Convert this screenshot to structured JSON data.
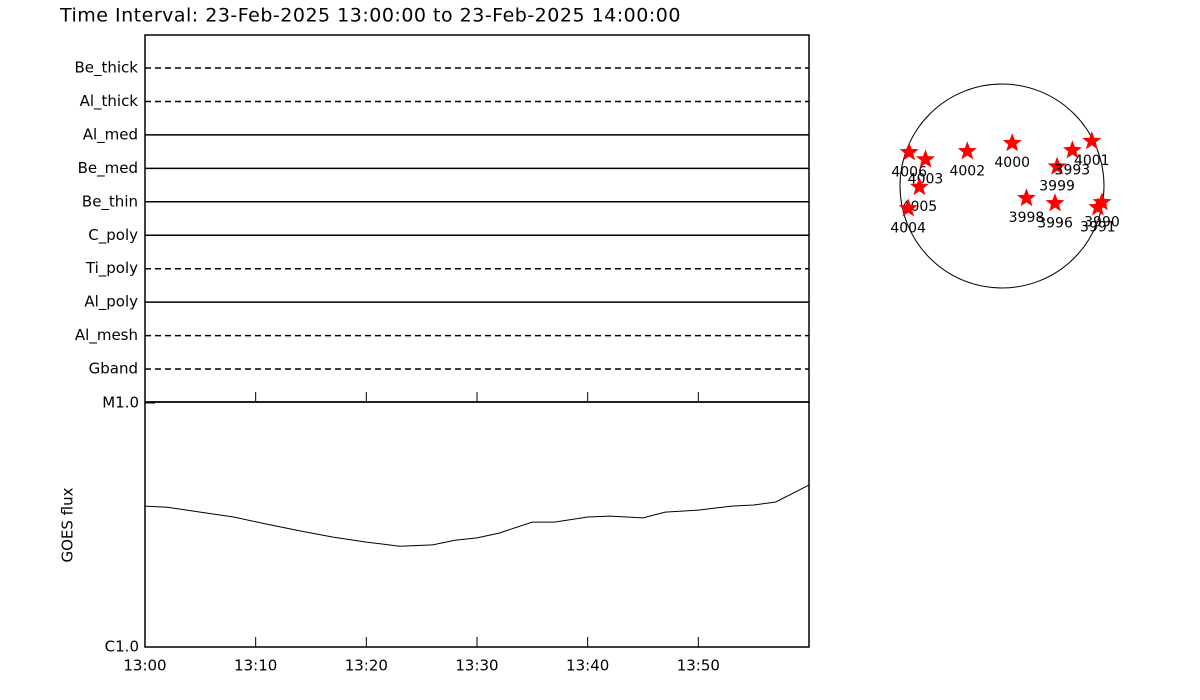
{
  "chart_data": [
    {
      "type": "timeline",
      "title": "Time Interval: 23-Feb-2025 13:00:00 to 23-Feb-2025 14:00:00",
      "categories": [
        "Be_thick",
        "Al_thick",
        "Al_med",
        "Be_med",
        "Be_thin",
        "C_poly",
        "Ti_poly",
        "Al_poly",
        "Al_mesh",
        "Gband"
      ],
      "styles": [
        "dashed",
        "dashed",
        "solid",
        "solid",
        "solid",
        "solid",
        "dashed",
        "solid",
        "dashed",
        "dashed"
      ],
      "color": "#000000"
    },
    {
      "type": "line",
      "y_label": "GOES flux",
      "log_y": true,
      "x": [
        "13:00",
        "13:02",
        "13:05",
        "13:08",
        "13:11",
        "13:14",
        "13:17",
        "13:20",
        "13:23",
        "13:26",
        "13:28",
        "13:30",
        "13:32",
        "13:35",
        "13:37",
        "13:40",
        "13:42",
        "13:45",
        "13:47",
        "13:50",
        "13:53",
        "13:55",
        "13:57",
        "14:00"
      ],
      "values": [
        3.78e-06,
        3.74e-06,
        3.57e-06,
        3.41e-06,
        3.19e-06,
        2.99e-06,
        2.82e-06,
        2.69e-06,
        2.59e-06,
        2.62e-06,
        2.74e-06,
        2.8e-06,
        2.93e-06,
        3.25e-06,
        3.25e-06,
        3.41e-06,
        3.44e-06,
        3.38e-06,
        3.57e-06,
        3.64e-06,
        3.78e-06,
        3.82e-06,
        3.93e-06,
        4.61e-06
      ],
      "color": "#000000",
      "xlim": [
        "13:00",
        "14:00"
      ],
      "xticks": [
        "13:00",
        "13:10",
        "13:20",
        "13:30",
        "13:40",
        "13:50"
      ],
      "ylim": [
        1e-06,
        1e-05
      ],
      "yticks": [
        {
          "value": 1e-06,
          "label": "C1.0"
        },
        {
          "value": 1e-05,
          "label": "M1.0"
        }
      ]
    },
    {
      "type": "disk",
      "labels": [
        "4006",
        "4003",
        "4005",
        "4004",
        "4002",
        "4000",
        "3999",
        "3993",
        "4001",
        "3998",
        "3996",
        "3990",
        "3991"
      ],
      "x": [
        -0.91,
        -0.75,
        -0.81,
        -0.92,
        -0.34,
        0.1,
        0.54,
        0.69,
        0.88,
        0.24,
        0.52,
        0.98,
        0.94
      ],
      "y": [
        0.33,
        0.26,
        -0.01,
        -0.22,
        0.34,
        0.42,
        0.19,
        0.35,
        0.44,
        -0.12,
        -0.17,
        -0.16,
        -0.21
      ],
      "color": "#ff0000",
      "xlim": [
        -1,
        1
      ],
      "ylim": [
        -1,
        1
      ]
    }
  ]
}
